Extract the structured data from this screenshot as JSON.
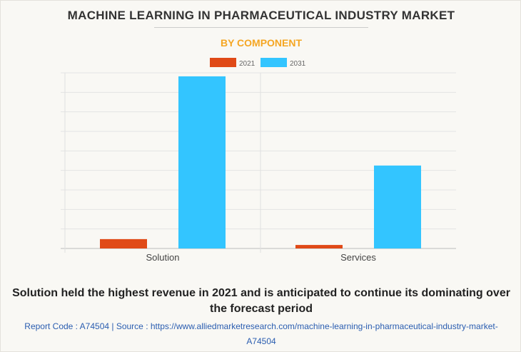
{
  "title": "MACHINE LEARNING IN PHARMACEUTICAL INDUSTRY MARKET",
  "subtitle": "BY COMPONENT",
  "chart_data": {
    "type": "bar",
    "categories": [
      "Solution",
      "Services"
    ],
    "series": [
      {
        "name": "2021",
        "color": "#e04a17",
        "values": [
          0.48,
          0.18
        ]
      },
      {
        "name": "2031",
        "color": "#33c5ff",
        "values": [
          8.82,
          4.25
        ]
      }
    ],
    "ylim": [
      0,
      9
    ],
    "grid": true,
    "legend": "top-center",
    "xlabel": "",
    "ylabel": ""
  },
  "caption": "Solution held the highest revenue in 2021 and is anticipated to continue its dominating over the forecast period",
  "source": "Report Code : A74504  |  Source : https://www.alliedmarketresearch.com/machine-learning-in-pharmaceutical-industry-market-A74504"
}
